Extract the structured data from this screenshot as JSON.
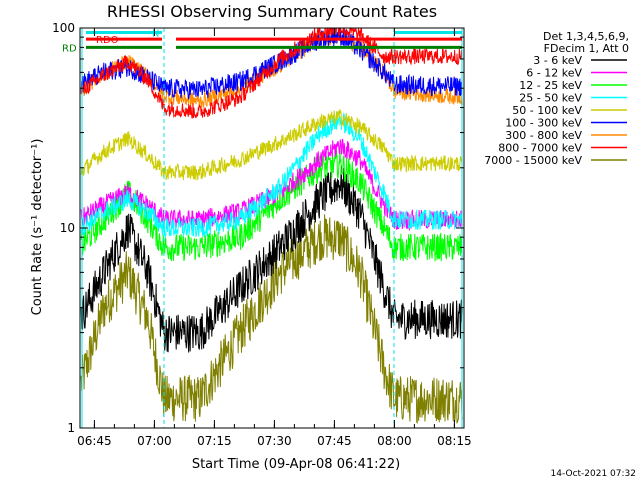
{
  "chart_data": {
    "type": "line",
    "title": "RHESSI Observing Summary Count Rates",
    "xlabel": "Start Time (09-Apr-08 06:41:22)",
    "ylabel": "Count Rate (s⁻¹ detector⁻¹)",
    "y_scale": "log",
    "ylim": [
      1,
      100
    ],
    "xlim_minutes": [
      0,
      96
    ],
    "x_tick_labels": [
      "06:45",
      "07:00",
      "07:15",
      "07:30",
      "07:45",
      "08:00",
      "08:15"
    ],
    "x_tick_minutes": [
      3.6,
      18.6,
      33.6,
      48.6,
      63.6,
      78.6,
      93.6
    ],
    "y_tick_labels": [
      "1",
      "10",
      "100"
    ],
    "y_tick_values": [
      1,
      10,
      100
    ],
    "legend_header": [
      "Det 1,3,4,5,6,9,",
      "FDecim 1, Att 0"
    ],
    "legend_placement": "right",
    "flags": [
      {
        "label": "N",
        "color": "#00e5e5"
      },
      {
        "label": "RDO",
        "color": "#ff0000"
      },
      {
        "label": "RD",
        "color": "#008000"
      }
    ],
    "timestamp": "14-Oct-2021 07:32",
    "series": [
      {
        "name": "3 - 6 keV",
        "color": "#000000",
        "noise": 0.1,
        "points": [
          [
            0,
            3.5
          ],
          [
            6,
            6
          ],
          [
            12,
            10
          ],
          [
            17,
            6
          ],
          [
            21,
            3
          ],
          [
            30,
            3
          ],
          [
            40,
            5
          ],
          [
            50,
            8
          ],
          [
            60,
            14
          ],
          [
            65,
            17
          ],
          [
            70,
            12
          ],
          [
            76,
            5
          ],
          [
            78.5,
            3.5
          ],
          [
            96,
            3.5
          ]
        ]
      },
      {
        "name": "6 - 12 keV",
        "color": "#ff00ff",
        "noise": 0.05,
        "points": [
          [
            0,
            11
          ],
          [
            6,
            13
          ],
          [
            12,
            15
          ],
          [
            17,
            13
          ],
          [
            21,
            11
          ],
          [
            30,
            11
          ],
          [
            40,
            12
          ],
          [
            50,
            15
          ],
          [
            60,
            22
          ],
          [
            65,
            26
          ],
          [
            70,
            22
          ],
          [
            76,
            13
          ],
          [
            78.5,
            11
          ],
          [
            96,
            11
          ]
        ]
      },
      {
        "name": "12 - 25 keV",
        "color": "#00ff00",
        "noise": 0.07,
        "points": [
          [
            0,
            8
          ],
          [
            6,
            11
          ],
          [
            12,
            15
          ],
          [
            17,
            11
          ],
          [
            21,
            8
          ],
          [
            30,
            8
          ],
          [
            40,
            9
          ],
          [
            50,
            14
          ],
          [
            60,
            20
          ],
          [
            65,
            21
          ],
          [
            70,
            17
          ],
          [
            76,
            10
          ],
          [
            78.5,
            8
          ],
          [
            96,
            8
          ]
        ]
      },
      {
        "name": "25 - 50 keV",
        "color": "#00ffff",
        "noise": 0.05,
        "points": [
          [
            0,
            10
          ],
          [
            6,
            12
          ],
          [
            12,
            14
          ],
          [
            17,
            12
          ],
          [
            21,
            10
          ],
          [
            30,
            10
          ],
          [
            40,
            11
          ],
          [
            50,
            16
          ],
          [
            60,
            30
          ],
          [
            65,
            35
          ],
          [
            70,
            28
          ],
          [
            76,
            15
          ],
          [
            78.5,
            11
          ],
          [
            96,
            11
          ]
        ]
      },
      {
        "name": "50 - 100 keV",
        "color": "#cccc00",
        "noise": 0.04,
        "points": [
          [
            0,
            19
          ],
          [
            6,
            24
          ],
          [
            12,
            28
          ],
          [
            17,
            23
          ],
          [
            21,
            19
          ],
          [
            30,
            19
          ],
          [
            40,
            22
          ],
          [
            50,
            27
          ],
          [
            60,
            34
          ],
          [
            65,
            36
          ],
          [
            70,
            32
          ],
          [
            76,
            25
          ],
          [
            78.5,
            21
          ],
          [
            96,
            21
          ]
        ]
      },
      {
        "name": "100 - 300 keV",
        "color": "#0000ff",
        "noise": 0.05,
        "points": [
          [
            0,
            52
          ],
          [
            6,
            60
          ],
          [
            12,
            64
          ],
          [
            17,
            56
          ],
          [
            21,
            50
          ],
          [
            30,
            49
          ],
          [
            40,
            54
          ],
          [
            50,
            68
          ],
          [
            60,
            88
          ],
          [
            65,
            92
          ],
          [
            70,
            78
          ],
          [
            76,
            60
          ],
          [
            78.5,
            52
          ],
          [
            96,
            51
          ]
        ]
      },
      {
        "name": "300 - 800 keV",
        "color": "#ff8c00",
        "noise": 0.04,
        "points": [
          [
            0,
            48
          ],
          [
            6,
            60
          ],
          [
            12,
            68
          ],
          [
            17,
            57
          ],
          [
            21,
            46
          ],
          [
            30,
            43
          ],
          [
            40,
            50
          ],
          [
            50,
            65
          ],
          [
            60,
            88
          ],
          [
            65,
            92
          ],
          [
            70,
            80
          ],
          [
            76,
            60
          ],
          [
            78.5,
            48
          ],
          [
            96,
            45
          ]
        ]
      },
      {
        "name": "800 - 7000 keV",
        "color": "#ff0000",
        "noise": 0.04,
        "points": [
          [
            0,
            48
          ],
          [
            6,
            58
          ],
          [
            12,
            68
          ],
          [
            17,
            55
          ],
          [
            21,
            40
          ],
          [
            30,
            38
          ],
          [
            40,
            45
          ],
          [
            50,
            70
          ],
          [
            60,
            95
          ],
          [
            65,
            100
          ],
          [
            70,
            92
          ],
          [
            76,
            72
          ],
          [
            78.5,
            72
          ],
          [
            96,
            72
          ]
        ]
      },
      {
        "name": "7000 - 15000 keV",
        "color": "#808000",
        "noise": 0.12,
        "points": [
          [
            0,
            1.6
          ],
          [
            6,
            4
          ],
          [
            12,
            6
          ],
          [
            17,
            3.5
          ],
          [
            21,
            1.4
          ],
          [
            30,
            1.4
          ],
          [
            40,
            3
          ],
          [
            50,
            6
          ],
          [
            60,
            9
          ],
          [
            65,
            9
          ],
          [
            70,
            6
          ],
          [
            76,
            2
          ],
          [
            78.5,
            1.4
          ],
          [
            96,
            1.4
          ]
        ]
      }
    ]
  }
}
